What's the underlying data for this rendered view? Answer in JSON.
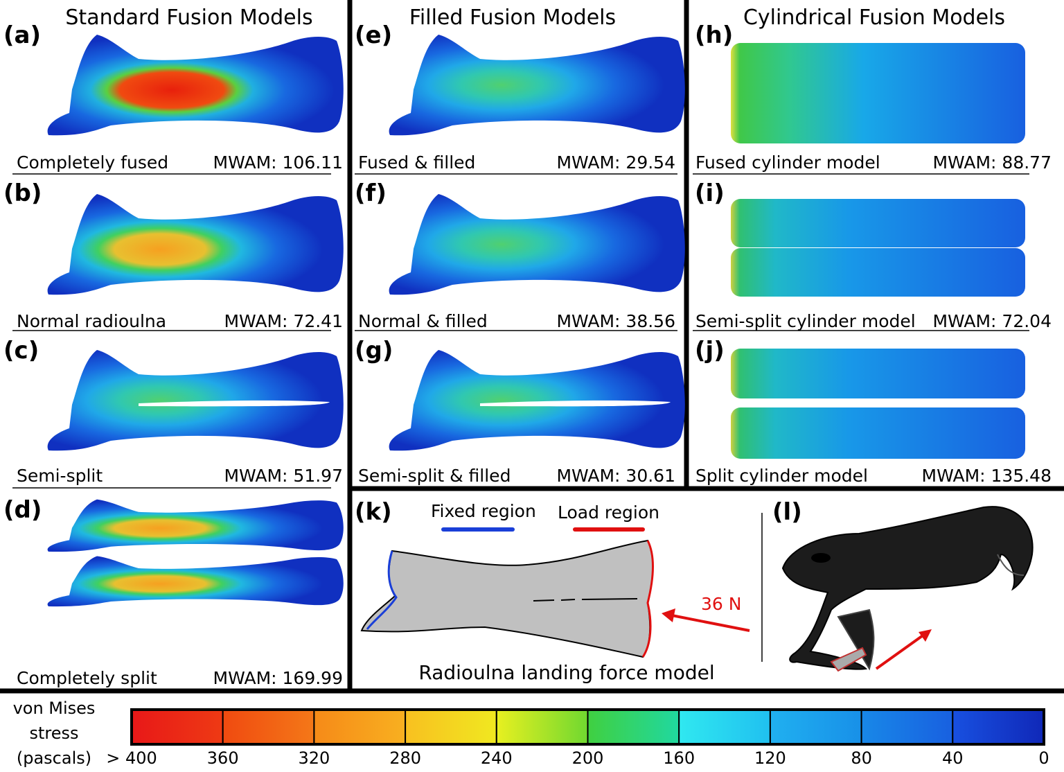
{
  "columns": [
    {
      "title": "Standard Fusion Models",
      "panels": [
        {
          "letter": "(a)",
          "caption": "Completely fused",
          "mwam": "MWAM: 106.11"
        },
        {
          "letter": "(b)",
          "caption": "Normal radioulna",
          "mwam": "MWAM: 72.41"
        },
        {
          "letter": "(c)",
          "caption": "Semi-split",
          "mwam": "MWAM: 51.97"
        },
        {
          "letter": "(d)",
          "caption": "Completely split",
          "mwam": "MWAM: 169.99"
        }
      ]
    },
    {
      "title": "Filled Fusion Models",
      "panels": [
        {
          "letter": "(e)",
          "caption": "Fused & filled",
          "mwam": "MWAM: 29.54"
        },
        {
          "letter": "(f)",
          "caption": "Normal & filled",
          "mwam": "MWAM: 38.56"
        },
        {
          "letter": "(g)",
          "caption": "Semi-split & filled",
          "mwam": "MWAM: 30.61"
        }
      ]
    },
    {
      "title": "Cylindrical Fusion Models",
      "panels": [
        {
          "letter": "(h)",
          "caption": "Fused cylinder model",
          "mwam": "MWAM: 88.77"
        },
        {
          "letter": "(i)",
          "caption": "Semi-split cylinder model",
          "mwam": "MWAM: 72.04"
        },
        {
          "letter": "(j)",
          "caption": "Split cylinder model",
          "mwam": "MWAM: 135.48"
        }
      ]
    }
  ],
  "panel_k": {
    "letter": "(k)",
    "fixed": "Fixed region",
    "load": "Load region",
    "force": "36 N",
    "caption": "Radioulna landing force model"
  },
  "panel_l": {
    "letter": "(l)"
  },
  "colorbar": {
    "title": [
      "von Mises",
      "stress",
      "(pascals)"
    ],
    "labels": [
      "> 400",
      "360",
      "320",
      "280",
      "240",
      "200",
      "160",
      "120",
      "80",
      "40",
      "0"
    ]
  }
}
